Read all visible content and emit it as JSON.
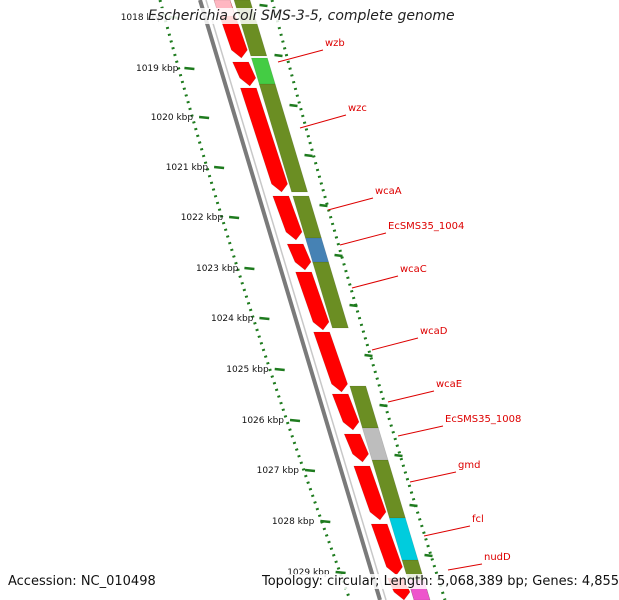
{
  "title": {
    "organism_italic": "Escherichia coli",
    "rest": " SMS-3-5, complete genome"
  },
  "footer": {
    "accession": "Accession: NC_010498",
    "topology": "Topology: circular; Length: 5,068,389 bp; Genes: 4,855"
  },
  "axis_labels": [
    "1018 kbp",
    "1019 kbp",
    "1020 kbp",
    "1021 kbp",
    "1022 kbp",
    "1023 kbp",
    "1024 kbp",
    "1025 kbp",
    "1026 kbp",
    "1027 kbp",
    "1028 kbp",
    "1029 kbp"
  ],
  "genes": [
    "wzb",
    "wzc",
    "wcaA",
    "EcSMS35_1004",
    "wcaC",
    "wcaD",
    "wcaE",
    "EcSMS35_1008",
    "gmd",
    "fcl",
    "nudD"
  ],
  "colors": {
    "forward_strand": "#ff0000",
    "reverse_strand": "#6b8e23",
    "backbone": "#7a7a7a",
    "gc_ticks": "#1e7b1e",
    "label": "#dd0000",
    "highlight_green": "#44cc44",
    "highlight_blue": "#4682b4",
    "highlight_gray": "#bdbdbd",
    "highlight_cyan": "#00ccdd",
    "highlight_magenta": "#ee55cc",
    "highlight_pink": "#ffb6c1"
  }
}
